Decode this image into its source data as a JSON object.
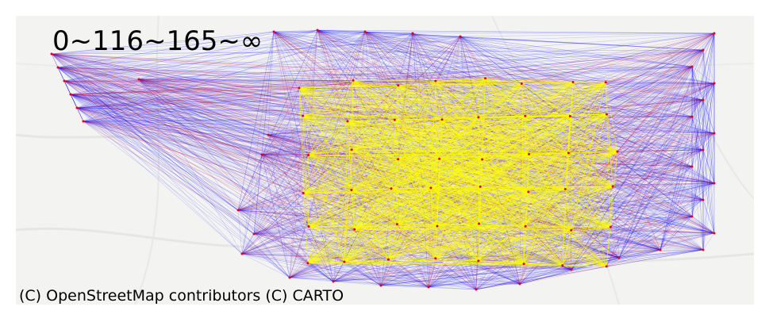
{
  "map": {
    "legend_label": "0~116~165~∞",
    "attribution": "(C) OpenStreetMap contributors (C) CARTO",
    "basemap_style": "light-gray",
    "edge_colors": {
      "low": "#0000ff",
      "mid": "#dd0022",
      "high": "#ffff00"
    },
    "background_color": "#f3f3f2"
  }
}
